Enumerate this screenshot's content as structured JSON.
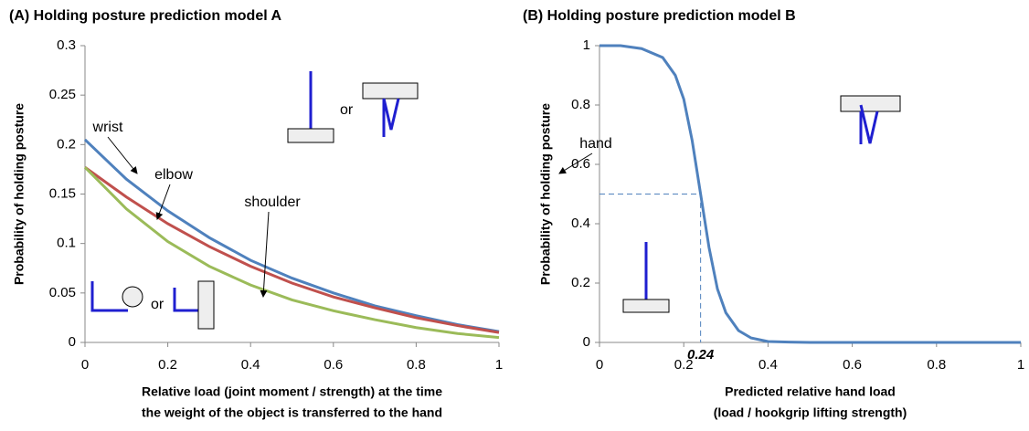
{
  "chart_data": [
    {
      "type": "line",
      "title": "(A) Holding posture prediction model A",
      "ylabel": "Probability of holding posture",
      "xlabel": [
        "Relative load (joint moment / strength) at the time",
        "the weight of the object is transferred to the hand"
      ],
      "x": [
        0,
        0.1,
        0.2,
        0.3,
        0.4,
        0.5,
        0.6,
        0.7,
        0.8,
        0.9,
        1
      ],
      "series": [
        {
          "name": "wrist",
          "color": "#4f81bd",
          "values": [
            0.205,
            0.165,
            0.133,
            0.106,
            0.083,
            0.065,
            0.05,
            0.037,
            0.027,
            0.018,
            0.011
          ]
        },
        {
          "name": "elbow",
          "color": "#c0504d",
          "values": [
            0.177,
            0.147,
            0.12,
            0.097,
            0.077,
            0.06,
            0.046,
            0.035,
            0.025,
            0.017,
            0.01
          ]
        },
        {
          "name": "shoulder",
          "color": "#9bbb59",
          "values": [
            0.177,
            0.135,
            0.102,
            0.077,
            0.058,
            0.043,
            0.032,
            0.023,
            0.015,
            0.009,
            0.005
          ]
        }
      ],
      "annotations": [
        "or",
        "or"
      ],
      "xlim": [
        0,
        1
      ],
      "xticks": [
        0,
        0.2,
        0.4,
        0.6,
        0.8,
        1
      ],
      "ylim": [
        0,
        0.3
      ],
      "yticks": [
        0,
        0.05,
        0.1,
        0.15,
        0.2,
        0.25,
        0.3
      ]
    },
    {
      "type": "line",
      "title": "(B) Holding posture prediction model B",
      "ylabel": "Probability of holding posture",
      "xlabel": [
        "Predicted relative hand load",
        "(load / hookgrip lifting strength)"
      ],
      "x": [
        0,
        0.05,
        0.1,
        0.15,
        0.18,
        0.2,
        0.22,
        0.24,
        0.26,
        0.28,
        0.3,
        0.33,
        0.36,
        0.4,
        0.45,
        0.5,
        0.6,
        0.8,
        1
      ],
      "series": [
        {
          "name": "hand",
          "color": "#4f81bd",
          "values": [
            1,
            1,
            0.99,
            0.96,
            0.9,
            0.82,
            0.68,
            0.5,
            0.32,
            0.18,
            0.1,
            0.04,
            0.015,
            0.003,
            0.001,
            0,
            0,
            0,
            0
          ]
        }
      ],
      "guide": {
        "x": 0.24,
        "y": 0.5
      },
      "xlim": [
        0,
        1
      ],
      "xticks": [
        0,
        0.2,
        0.4,
        0.6,
        0.8,
        1
      ],
      "ylim": [
        0,
        1
      ],
      "yticks": [
        0,
        0.2,
        0.4,
        0.6,
        0.8,
        1
      ]
    }
  ]
}
